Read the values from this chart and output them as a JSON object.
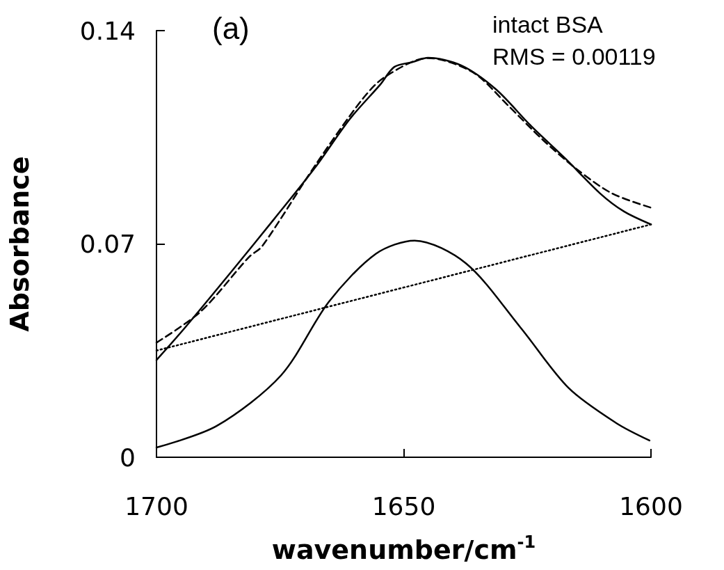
{
  "chart_data": {
    "type": "line",
    "xlabel": "wavenumber/cm$^{-1}$",
    "ylabel": "Absorbance",
    "annotations": [
      "(a)",
      "intact BSA",
      "RMS = 0.00119"
    ],
    "xlim": [
      1700,
      1600
    ],
    "xticks": [
      1700,
      1650,
      1600
    ],
    "ylim": [
      0,
      0.14
    ],
    "yticks": [
      0,
      0.07,
      0.14
    ],
    "grid": false,
    "marker": "none",
    "series": [
      {
        "color": "#000000",
        "line_style": "solid",
        "x": [
          1700,
          1694.2,
          1684.5,
          1676.2,
          1667.9,
          1660.9,
          1654.7,
          1651.9,
          1648.2,
          1645.1,
          1638.4,
          1631.4,
          1624.3,
          1617.3,
          1610.3,
          1605.5,
          1600
        ],
        "values": [
          0.0319,
          0.0426,
          0.0616,
          0.0782,
          0.0951,
          0.111,
          0.1224,
          0.1281,
          0.1297,
          0.1311,
          0.1286,
          0.1208,
          0.1088,
          0.098,
          0.0866,
          0.0807,
          0.0764
        ]
      },
      {
        "color": "#000000",
        "line_style": "dashed",
        "x": [
          1700,
          1691,
          1681.3,
          1678.6,
          1667.9,
          1658.5,
          1653.9,
          1645.1,
          1636,
          1629,
          1621.9,
          1614.9,
          1607.9,
          1600
        ],
        "values": [
          0.0376,
          0.0479,
          0.0657,
          0.0693,
          0.0958,
          0.1172,
          0.1247,
          0.131,
          0.1263,
          0.1156,
          0.1042,
          0.0944,
          0.0866,
          0.0819
        ]
      },
      {
        "color": "#000000",
        "line_style": "dotted",
        "x": [
          1700,
          1600
        ],
        "values": [
          0.035,
          0.0764
        ]
      },
      {
        "color": "#000000",
        "line_style": "solid",
        "x": [
          1700,
          1687.8,
          1674.8,
          1665.1,
          1655.6,
          1647.8,
          1637.4,
          1626.4,
          1616.7,
          1607,
          1600.3
        ],
        "values": [
          0.0032,
          0.0103,
          0.0269,
          0.0511,
          0.0668,
          0.0711,
          0.0636,
          0.0426,
          0.0228,
          0.0112,
          0.0055
        ]
      }
    ]
  }
}
